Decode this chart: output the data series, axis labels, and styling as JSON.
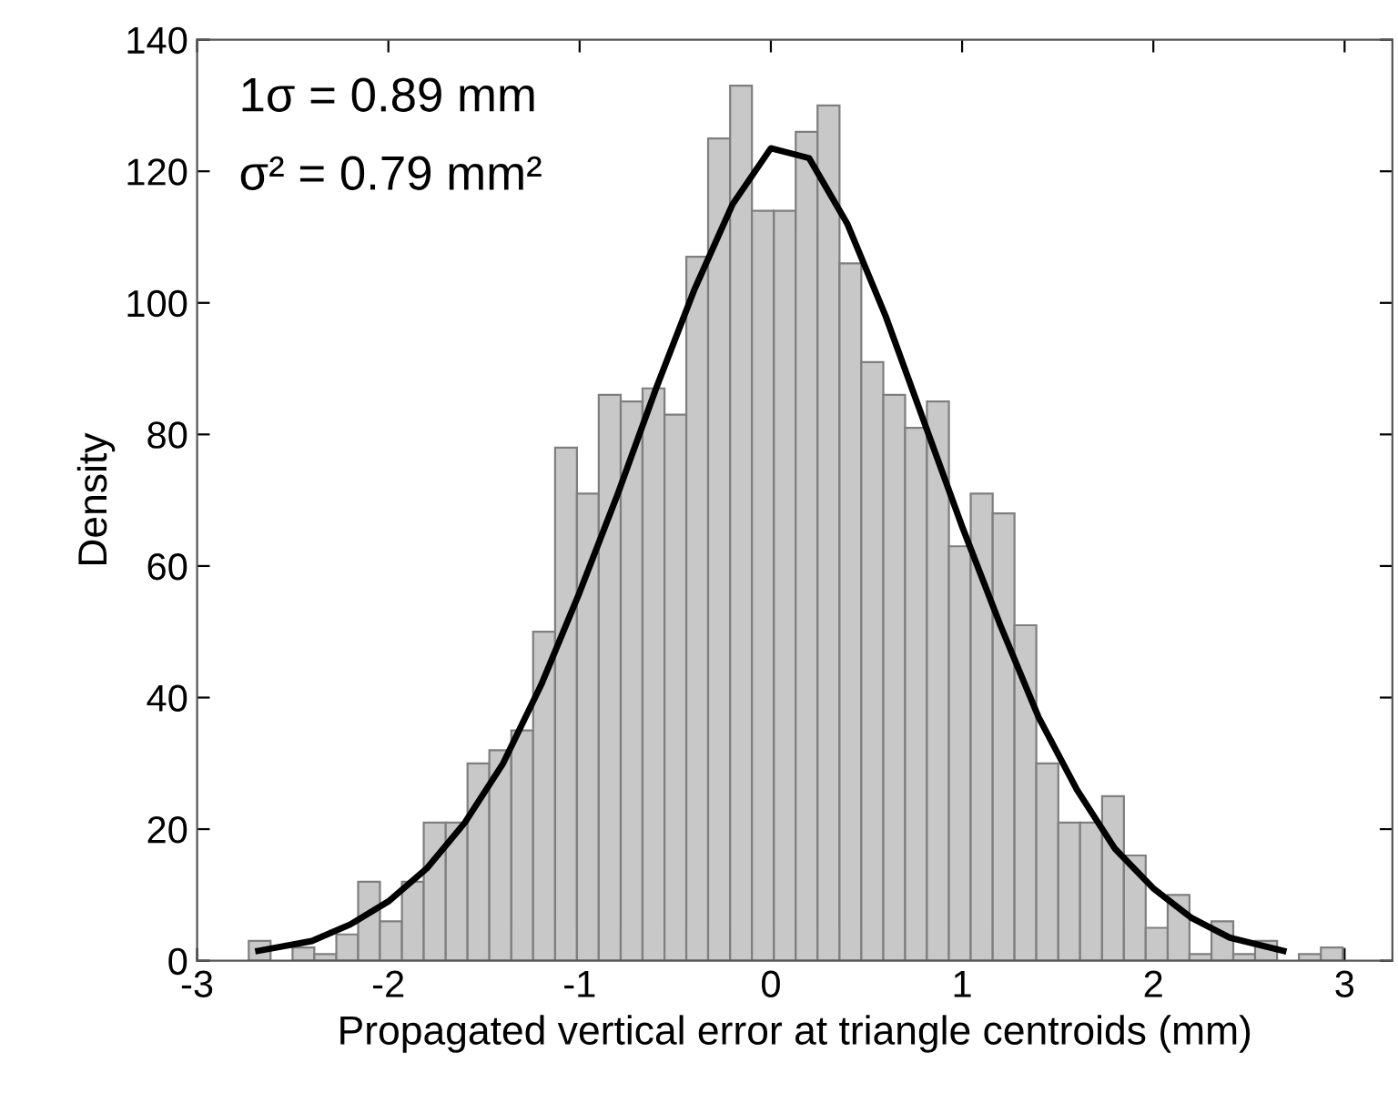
{
  "chart_data": {
    "type": "histogram",
    "xlabel": "Propagated vertical error at triangle centroids (mm)",
    "ylabel": "Density",
    "annotations": [
      "1σ = 0.89 mm",
      "σ² = 0.79 mm²"
    ],
    "series": [
      {
        "color": "#c8c8c8",
        "bins": [
          -2.73,
          -2.616,
          -2.501,
          -2.387,
          -2.272,
          -2.158,
          -2.044,
          -1.929,
          -1.815,
          -1.7,
          -1.586,
          -1.472,
          -1.357,
          -1.243,
          -1.128,
          -1.014,
          -0.9,
          -0.785,
          -0.671,
          -0.556,
          -0.442,
          -0.328,
          -0.213,
          -0.099,
          0.016,
          0.13,
          0.244,
          0.359,
          0.473,
          0.588,
          0.702,
          0.816,
          0.931,
          1.045,
          1.16,
          1.274,
          1.388,
          1.503,
          1.617,
          1.732,
          1.846,
          1.96,
          2.075,
          2.189,
          2.304,
          2.418,
          2.532,
          2.647,
          2.761,
          2.876,
          2.99
        ],
        "values": [
          3,
          0,
          2,
          1,
          4,
          12,
          6,
          12,
          21,
          21,
          30,
          32,
          35,
          50,
          78,
          71,
          86,
          85,
          87,
          83,
          107,
          125,
          133,
          114,
          114,
          126,
          130,
          106,
          91,
          86,
          81,
          85,
          63,
          71,
          68,
          51,
          30,
          21,
          21,
          25,
          16,
          5,
          10,
          1,
          6,
          1,
          3,
          0,
          1,
          2
        ]
      },
      {
        "type": "line",
        "color": "#000000",
        "x": [
          -2.68,
          -2.4,
          -2.2,
          -2.0,
          -1.8,
          -1.6,
          -1.4,
          -1.2,
          -1.0,
          -0.8,
          -0.6,
          -0.4,
          -0.2,
          0.0,
          0.2,
          0.4,
          0.6,
          0.8,
          1.0,
          1.2,
          1.4,
          1.6,
          1.8,
          2.0,
          2.2,
          2.4,
          2.68
        ],
        "values": [
          1.5,
          3,
          5.5,
          9,
          14,
          21,
          30,
          42,
          56,
          71,
          87,
          102,
          115,
          123.5,
          122,
          112,
          98,
          82,
          66,
          51,
          37,
          26,
          17,
          11,
          6.5,
          3.5,
          1.5
        ]
      }
    ],
    "xlim": [
      -3,
      3.25
    ],
    "ylim": [
      0,
      140
    ],
    "xticks": [
      -3,
      -2,
      -1,
      0,
      1,
      2,
      3
    ],
    "yticks": [
      0,
      20,
      40,
      60,
      80,
      100,
      120,
      140
    ],
    "grid": false,
    "legend": false
  }
}
